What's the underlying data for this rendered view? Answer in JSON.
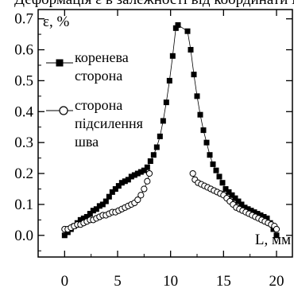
{
  "chart_data": {
    "type": "scatter",
    "top_caption": "Деформація ε в залежності від координати L",
    "xlabel": "L, мм",
    "ylabel": "ε, %",
    "xlim": [
      -2.5,
      21.5
    ],
    "ylim": [
      -0.07,
      0.73
    ],
    "x_ticks": [
      0,
      5,
      10,
      15,
      20
    ],
    "x_tick_labels": [
      "0",
      "5",
      "10",
      "15",
      "20"
    ],
    "y_ticks": [
      0.0,
      0.1,
      0.2,
      0.3,
      0.4,
      0.5,
      0.6,
      0.7
    ],
    "y_tick_labels": [
      "0.0",
      "0.1",
      "0.2",
      "0.3",
      "0.4",
      "0.5",
      "0.6",
      "0.7"
    ],
    "legend_position": "left",
    "series": [
      {
        "name": "коренева сторона",
        "marker": "filled-square",
        "color": "#000000",
        "points": [
          [
            0.0,
            0.0
          ],
          [
            0.3,
            0.01
          ],
          [
            0.6,
            0.02
          ],
          [
            0.9,
            0.03
          ],
          [
            1.2,
            0.04
          ],
          [
            1.5,
            0.05
          ],
          [
            1.8,
            0.055
          ],
          [
            2.1,
            0.06
          ],
          [
            2.4,
            0.07
          ],
          [
            2.7,
            0.08
          ],
          [
            3.0,
            0.085
          ],
          [
            3.3,
            0.095
          ],
          [
            3.6,
            0.1
          ],
          [
            3.9,
            0.11
          ],
          [
            4.2,
            0.125
          ],
          [
            4.5,
            0.14
          ],
          [
            4.8,
            0.15
          ],
          [
            5.1,
            0.16
          ],
          [
            5.4,
            0.17
          ],
          [
            5.7,
            0.175
          ],
          [
            6.0,
            0.18
          ],
          [
            6.3,
            0.19
          ],
          [
            6.6,
            0.195
          ],
          [
            6.9,
            0.2
          ],
          [
            7.2,
            0.205
          ],
          [
            7.5,
            0.21
          ],
          [
            7.8,
            0.22
          ],
          [
            8.1,
            0.24
          ],
          [
            8.4,
            0.26
          ],
          [
            8.7,
            0.285
          ],
          [
            9.0,
            0.32
          ],
          [
            9.3,
            0.37
          ],
          [
            9.6,
            0.43
          ],
          [
            9.9,
            0.5
          ],
          [
            10.2,
            0.58
          ],
          [
            10.5,
            0.67
          ],
          [
            10.7,
            0.68
          ],
          [
            11.6,
            0.66
          ],
          [
            11.9,
            0.6
          ],
          [
            12.2,
            0.52
          ],
          [
            12.5,
            0.45
          ],
          [
            12.8,
            0.39
          ],
          [
            13.1,
            0.34
          ],
          [
            13.4,
            0.3
          ],
          [
            13.7,
            0.26
          ],
          [
            14.0,
            0.23
          ],
          [
            14.3,
            0.21
          ],
          [
            14.6,
            0.19
          ],
          [
            14.9,
            0.17
          ],
          [
            15.2,
            0.15
          ],
          [
            15.5,
            0.14
          ],
          [
            15.8,
            0.13
          ],
          [
            16.1,
            0.12
          ],
          [
            16.4,
            0.11
          ],
          [
            16.7,
            0.1
          ],
          [
            17.0,
            0.09
          ],
          [
            17.3,
            0.085
          ],
          [
            17.6,
            0.08
          ],
          [
            17.9,
            0.075
          ],
          [
            18.2,
            0.07
          ],
          [
            18.5,
            0.065
          ],
          [
            18.8,
            0.06
          ],
          [
            19.1,
            0.055
          ],
          [
            19.4,
            0.04
          ],
          [
            19.7,
            0.02
          ],
          [
            20.0,
            0.0
          ]
        ]
      },
      {
        "name": "сторона підсилення шва",
        "marker": "open-circle",
        "color": "#000000",
        "points": [
          [
            0.0,
            0.02
          ],
          [
            0.3,
            0.02
          ],
          [
            0.6,
            0.025
          ],
          [
            0.9,
            0.03
          ],
          [
            1.2,
            0.035
          ],
          [
            1.5,
            0.035
          ],
          [
            1.8,
            0.04
          ],
          [
            2.1,
            0.045
          ],
          [
            2.4,
            0.05
          ],
          [
            2.7,
            0.05
          ],
          [
            3.0,
            0.055
          ],
          [
            3.3,
            0.06
          ],
          [
            3.6,
            0.065
          ],
          [
            3.9,
            0.065
          ],
          [
            4.2,
            0.07
          ],
          [
            4.5,
            0.075
          ],
          [
            4.8,
            0.075
          ],
          [
            5.1,
            0.08
          ],
          [
            5.4,
            0.085
          ],
          [
            5.7,
            0.09
          ],
          [
            6.0,
            0.095
          ],
          [
            6.3,
            0.1
          ],
          [
            6.6,
            0.105
          ],
          [
            6.9,
            0.115
          ],
          [
            7.2,
            0.13
          ],
          [
            7.5,
            0.15
          ],
          [
            7.8,
            0.175
          ],
          [
            8.0,
            0.2
          ],
          [
            12.1,
            0.2
          ],
          [
            12.3,
            0.18
          ],
          [
            12.6,
            0.17
          ],
          [
            12.9,
            0.165
          ],
          [
            13.2,
            0.16
          ],
          [
            13.5,
            0.155
          ],
          [
            13.8,
            0.15
          ],
          [
            14.1,
            0.145
          ],
          [
            14.4,
            0.14
          ],
          [
            14.7,
            0.135
          ],
          [
            15.0,
            0.13
          ],
          [
            15.3,
            0.12
          ],
          [
            15.6,
            0.11
          ],
          [
            15.9,
            0.1
          ],
          [
            16.2,
            0.09
          ],
          [
            16.5,
            0.085
          ],
          [
            16.8,
            0.08
          ],
          [
            17.1,
            0.075
          ],
          [
            17.4,
            0.07
          ],
          [
            17.7,
            0.065
          ],
          [
            18.0,
            0.06
          ],
          [
            18.3,
            0.055
          ],
          [
            18.6,
            0.05
          ],
          [
            18.9,
            0.045
          ],
          [
            19.2,
            0.04
          ],
          [
            19.5,
            0.035
          ],
          [
            19.8,
            0.03
          ],
          [
            20.0,
            0.02
          ]
        ]
      }
    ]
  }
}
